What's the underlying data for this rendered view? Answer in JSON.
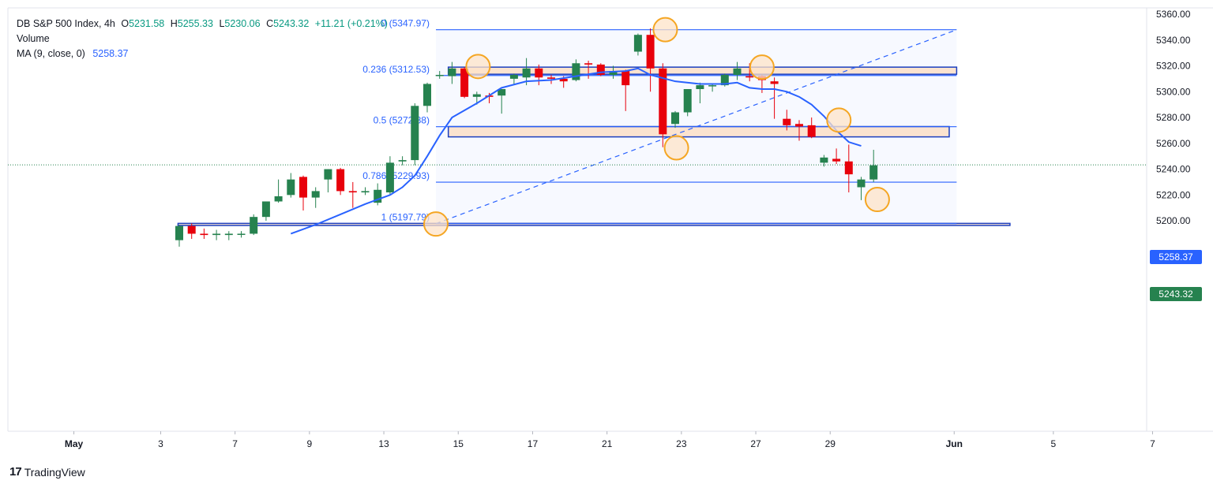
{
  "legend": {
    "symbol": "DB S&P 500 Index, 4h",
    "o_label": "O",
    "o": "5231.58",
    "h_label": "H",
    "h": "5255.33",
    "l_label": "L",
    "l": "5230.06",
    "c_label": "C",
    "c": "5243.32",
    "change": "+11.21 (+0.21%)",
    "volume": "Volume",
    "ma_label": "MA (9, close, 0)",
    "ma_value": "5258.37"
  },
  "brand": {
    "logo": "17",
    "name": "TradingView"
  },
  "colors": {
    "up": "#26824f",
    "down": "#e8000b",
    "ma": "#2962ff",
    "fib": "#2962ff",
    "zone_fill": "#fbe3cf",
    "marker": "#f5a623"
  },
  "price_tags": [
    {
      "value": "5258.37",
      "color": "#2962ff"
    },
    {
      "value": "5243.32",
      "color": "#26824f"
    }
  ],
  "chart_data": {
    "type": "candlestick",
    "ylim": [
      5190,
      5360
    ],
    "y_ticks": [
      "5360.00",
      "5340.00",
      "5320.00",
      "5300.00",
      "5280.00",
      "5260.00",
      "5240.00",
      "5220.00",
      "5200.00"
    ],
    "x_ticks": [
      {
        "label": "May",
        "slot": -8.5
      },
      {
        "label": "3",
        "slot": -1.5
      },
      {
        "label": "7",
        "slot": 4.5
      },
      {
        "label": "9",
        "slot": 10.5
      },
      {
        "label": "13",
        "slot": 16.5
      },
      {
        "label": "15",
        "slot": 22.5
      },
      {
        "label": "17",
        "slot": 28.5
      },
      {
        "label": "21",
        "slot": 34.5
      },
      {
        "label": "23",
        "slot": 40.5
      },
      {
        "label": "27",
        "slot": 46.5
      },
      {
        "label": "29",
        "slot": 52.5
      },
      {
        "label": "Jun",
        "slot": 62.5
      },
      {
        "label": "5",
        "slot": 70.5
      },
      {
        "label": "7",
        "slot": 78.5
      }
    ],
    "candles": [
      {
        "o": 5185,
        "h": 5197,
        "l": 5180,
        "c": 5196
      },
      {
        "o": 5196,
        "h": 5198,
        "l": 5186,
        "c": 5190
      },
      {
        "o": 5190,
        "h": 5194,
        "l": 5186,
        "c": 5189
      },
      {
        "o": 5189,
        "h": 5193,
        "l": 5185,
        "c": 5190
      },
      {
        "o": 5189,
        "h": 5192,
        "l": 5185,
        "c": 5190
      },
      {
        "o": 5190,
        "h": 5192,
        "l": 5187,
        "c": 5190
      },
      {
        "o": 5190,
        "h": 5205,
        "l": 5189,
        "c": 5203
      },
      {
        "o": 5203,
        "h": 5215,
        "l": 5200,
        "c": 5215
      },
      {
        "o": 5215,
        "h": 5232,
        "l": 5214,
        "c": 5219
      },
      {
        "o": 5220,
        "h": 5237,
        "l": 5218,
        "c": 5232
      },
      {
        "o": 5234,
        "h": 5235,
        "l": 5208,
        "c": 5218
      },
      {
        "o": 5218,
        "h": 5226,
        "l": 5210,
        "c": 5223
      },
      {
        "o": 5232,
        "h": 5240,
        "l": 5222,
        "c": 5240
      },
      {
        "o": 5240,
        "h": 5241,
        "l": 5220,
        "c": 5223
      },
      {
        "o": 5223,
        "h": 5230,
        "l": 5210,
        "c": 5222
      },
      {
        "o": 5222,
        "h": 5226,
        "l": 5220,
        "c": 5223
      },
      {
        "o": 5214,
        "h": 5229,
        "l": 5212,
        "c": 5224
      },
      {
        "o": 5222,
        "h": 5250,
        "l": 5220,
        "c": 5245
      },
      {
        "o": 5246,
        "h": 5250,
        "l": 5243,
        "c": 5247
      },
      {
        "o": 5247,
        "h": 5291,
        "l": 5243,
        "c": 5289
      },
      {
        "o": 5289,
        "h": 5307,
        "l": 5284,
        "c": 5306
      },
      {
        "o": 5313,
        "h": 5316,
        "l": 5310,
        "c": 5313
      },
      {
        "o": 5312,
        "h": 5323,
        "l": 5306,
        "c": 5318
      },
      {
        "o": 5318,
        "h": 5319,
        "l": 5295,
        "c": 5296
      },
      {
        "o": 5296,
        "h": 5300,
        "l": 5290,
        "c": 5298
      },
      {
        "o": 5297,
        "h": 5299,
        "l": 5291,
        "c": 5296
      },
      {
        "o": 5297,
        "h": 5302,
        "l": 5283,
        "c": 5302
      },
      {
        "o": 5310,
        "h": 5314,
        "l": 5306,
        "c": 5313
      },
      {
        "o": 5311,
        "h": 5326,
        "l": 5305,
        "c": 5318
      },
      {
        "o": 5318,
        "h": 5321,
        "l": 5305,
        "c": 5311
      },
      {
        "o": 5311,
        "h": 5313,
        "l": 5306,
        "c": 5310
      },
      {
        "o": 5310,
        "h": 5312,
        "l": 5303,
        "c": 5308
      },
      {
        "o": 5309,
        "h": 5325,
        "l": 5308,
        "c": 5322
      },
      {
        "o": 5322,
        "h": 5324,
        "l": 5310,
        "c": 5321
      },
      {
        "o": 5321,
        "h": 5322,
        "l": 5312,
        "c": 5313
      },
      {
        "o": 5313,
        "h": 5320,
        "l": 5310,
        "c": 5316
      },
      {
        "o": 5316,
        "h": 5317,
        "l": 5285,
        "c": 5305
      },
      {
        "o": 5331,
        "h": 5345,
        "l": 5328,
        "c": 5344
      },
      {
        "o": 5344,
        "h": 5349,
        "l": 5300,
        "c": 5318
      },
      {
        "o": 5318,
        "h": 5322,
        "l": 5257,
        "c": 5267
      },
      {
        "o": 5275,
        "h": 5285,
        "l": 5272,
        "c": 5284
      },
      {
        "o": 5284,
        "h": 5302,
        "l": 5281,
        "c": 5302
      },
      {
        "o": 5302,
        "h": 5307,
        "l": 5291,
        "c": 5305
      },
      {
        "o": 5305,
        "h": 5306,
        "l": 5300,
        "c": 5305
      },
      {
        "o": 5305,
        "h": 5314,
        "l": 5304,
        "c": 5313
      },
      {
        "o": 5313,
        "h": 5323,
        "l": 5309,
        "c": 5318
      },
      {
        "o": 5312,
        "h": 5322,
        "l": 5308,
        "c": 5311
      },
      {
        "o": 5312,
        "h": 5313,
        "l": 5299,
        "c": 5309
      },
      {
        "o": 5308,
        "h": 5311,
        "l": 5279,
        "c": 5306
      },
      {
        "o": 5279,
        "h": 5286,
        "l": 5270,
        "c": 5274
      },
      {
        "o": 5275,
        "h": 5278,
        "l": 5262,
        "c": 5273
      },
      {
        "o": 5274,
        "h": 5280,
        "l": 5264,
        "c": 5265
      },
      {
        "o": 5245,
        "h": 5251,
        "l": 5242,
        "c": 5249
      },
      {
        "o": 5248,
        "h": 5256,
        "l": 5244,
        "c": 5246
      },
      {
        "o": 5246,
        "h": 5259,
        "l": 5222,
        "c": 5236
      },
      {
        "o": 5226,
        "h": 5234,
        "l": 5216,
        "c": 5232
      },
      {
        "o": 5232,
        "h": 5255,
        "l": 5230,
        "c": 5243
      }
    ],
    "ma": {
      "name": "MA (9, close, 0)",
      "points": [
        [
          9,
          5190
        ],
        [
          11,
          5197
        ],
        [
          13,
          5205
        ],
        [
          15,
          5213
        ],
        [
          17,
          5220
        ],
        [
          18,
          5226
        ],
        [
          19,
          5235
        ],
        [
          20,
          5250
        ],
        [
          21,
          5266
        ],
        [
          22,
          5280
        ],
        [
          24,
          5291
        ],
        [
          26,
          5303
        ],
        [
          28,
          5308
        ],
        [
          30,
          5309
        ],
        [
          32,
          5312
        ],
        [
          34,
          5315
        ],
        [
          36,
          5316
        ],
        [
          37,
          5318
        ],
        [
          38,
          5313
        ],
        [
          40,
          5308
        ],
        [
          42,
          5306
        ],
        [
          44,
          5306
        ],
        [
          45,
          5307
        ],
        [
          46,
          5303
        ],
        [
          47,
          5302
        ],
        [
          48,
          5302
        ],
        [
          49,
          5300
        ],
        [
          50,
          5296
        ],
        [
          51,
          5290
        ],
        [
          52,
          5281
        ],
        [
          53,
          5270
        ],
        [
          54,
          5261
        ],
        [
          55,
          5258
        ]
      ]
    },
    "fib": {
      "start_slot": 20.7,
      "end_slot": 62.7,
      "levels": [
        {
          "ratio_label": "0",
          "label": "0 (5347.97)",
          "value": 5347.97
        },
        {
          "ratio_label": "0.236",
          "label": "0.236 (5312.53)",
          "value": 5312.53
        },
        {
          "ratio_label": "0.5",
          "label": "0.5 (5272.88)",
          "value": 5272.88
        },
        {
          "ratio_label": "0.786",
          "label": "0.786 (5229.93)",
          "value": 5229.93
        },
        {
          "ratio_label": "1",
          "label": "1 (5197.79)",
          "value": 5197.79
        }
      ],
      "trend": {
        "from_slot": 20.7,
        "from_value": 5197.79,
        "to_slot": 62.7,
        "to_value": 5347.97
      }
    },
    "zones": [
      {
        "from_slot": 21.7,
        "to_slot": 62.7,
        "top": 5319.0,
        "bottom": 5313.5
      },
      {
        "from_slot": 21.7,
        "to_slot": 62.1,
        "top": 5273.0,
        "bottom": 5265.0
      },
      {
        "from_slot": -0.1,
        "to_slot": 67.0,
        "top": 5198.0,
        "bottom": 5196.4
      }
    ],
    "markers": [
      {
        "slot": 20.7,
        "value": 5197.5
      },
      {
        "slot": 24.1,
        "value": 5319.5
      },
      {
        "slot": 39.2,
        "value": 5348.0
      },
      {
        "slot": 40.1,
        "value": 5256.5
      },
      {
        "slot": 47.0,
        "value": 5319.0
      },
      {
        "slot": 53.2,
        "value": 5278.0
      },
      {
        "slot": 56.3,
        "value": 5216.5
      }
    ],
    "last_price": 5243.32
  }
}
